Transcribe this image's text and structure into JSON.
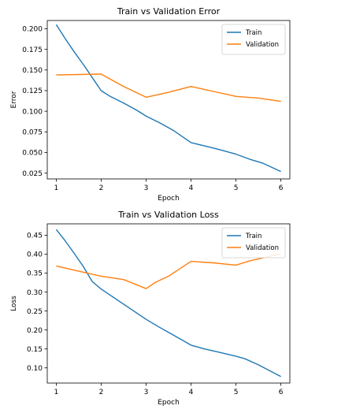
{
  "colors": {
    "train": "#1f77b4",
    "validation": "#ff7f0e",
    "axis": "#000000",
    "background": "#ffffff"
  },
  "chart_data": [
    {
      "type": "line",
      "title": "Train vs Validation Error",
      "xlabel": "Epoch",
      "ylabel": "Error",
      "xlim": [
        0.8,
        6.2
      ],
      "ylim": [
        0.018,
        0.21
      ],
      "grid": false,
      "legend": "top-right",
      "xticks": [
        1,
        2,
        3,
        4,
        5,
        6
      ],
      "yticks": [
        0.025,
        0.05,
        0.075,
        0.1,
        0.125,
        0.15,
        0.175,
        0.2
      ],
      "ytick_labels": [
        "0.025",
        "0.050",
        "0.075",
        "0.100",
        "0.125",
        "0.150",
        "0.175",
        "0.200"
      ],
      "series": [
        {
          "name": "Train",
          "color": "#1f77b4",
          "x": [
            1.0,
            1.2,
            1.4,
            1.6,
            1.8,
            2.0,
            2.2,
            2.5,
            2.8,
            3.0,
            3.3,
            3.6,
            4.0,
            4.3,
            4.6,
            5.0,
            5.3,
            5.6,
            6.0
          ],
          "y": [
            0.205,
            0.188,
            0.172,
            0.157,
            0.141,
            0.125,
            0.118,
            0.11,
            0.101,
            0.094,
            0.086,
            0.077,
            0.062,
            0.058,
            0.054,
            0.048,
            0.042,
            0.037,
            0.027
          ]
        },
        {
          "name": "Validation",
          "color": "#ff7f0e",
          "x": [
            1.0,
            2.0,
            2.5,
            3.0,
            3.5,
            4.0,
            4.5,
            5.0,
            5.5,
            6.0
          ],
          "y": [
            0.144,
            0.145,
            0.13,
            0.117,
            0.123,
            0.13,
            0.124,
            0.118,
            0.116,
            0.112
          ]
        }
      ]
    },
    {
      "type": "line",
      "title": "Train vs Validation Loss",
      "xlabel": "Epoch",
      "ylabel": "Loss",
      "xlim": [
        0.8,
        6.2
      ],
      "ylim": [
        0.06,
        0.48
      ],
      "grid": false,
      "legend": "top-right",
      "xticks": [
        1,
        2,
        3,
        4,
        5,
        6
      ],
      "yticks": [
        0.1,
        0.15,
        0.2,
        0.25,
        0.3,
        0.35,
        0.4,
        0.45
      ],
      "ytick_labels": [
        "0.10",
        "0.15",
        "0.20",
        "0.25",
        "0.30",
        "0.35",
        "0.40",
        "0.45"
      ],
      "series": [
        {
          "name": "Train",
          "color": "#1f77b4",
          "x": [
            1.0,
            1.2,
            1.4,
            1.6,
            1.8,
            2.0,
            2.3,
            2.6,
            3.0,
            3.3,
            3.6,
            4.0,
            4.3,
            4.6,
            5.0,
            5.2,
            5.5,
            6.0
          ],
          "y": [
            0.465,
            0.435,
            0.402,
            0.368,
            0.328,
            0.308,
            0.284,
            0.26,
            0.228,
            0.207,
            0.187,
            0.16,
            0.15,
            0.142,
            0.131,
            0.124,
            0.108,
            0.077
          ]
        },
        {
          "name": "Validation",
          "color": "#ff7f0e",
          "x": [
            1.0,
            1.5,
            2.0,
            2.5,
            3.0,
            3.2,
            3.5,
            4.0,
            4.5,
            5.0,
            5.3,
            6.0
          ],
          "y": [
            0.369,
            0.355,
            0.342,
            0.333,
            0.309,
            0.325,
            0.342,
            0.381,
            0.377,
            0.371,
            0.382,
            0.401
          ]
        }
      ]
    }
  ]
}
